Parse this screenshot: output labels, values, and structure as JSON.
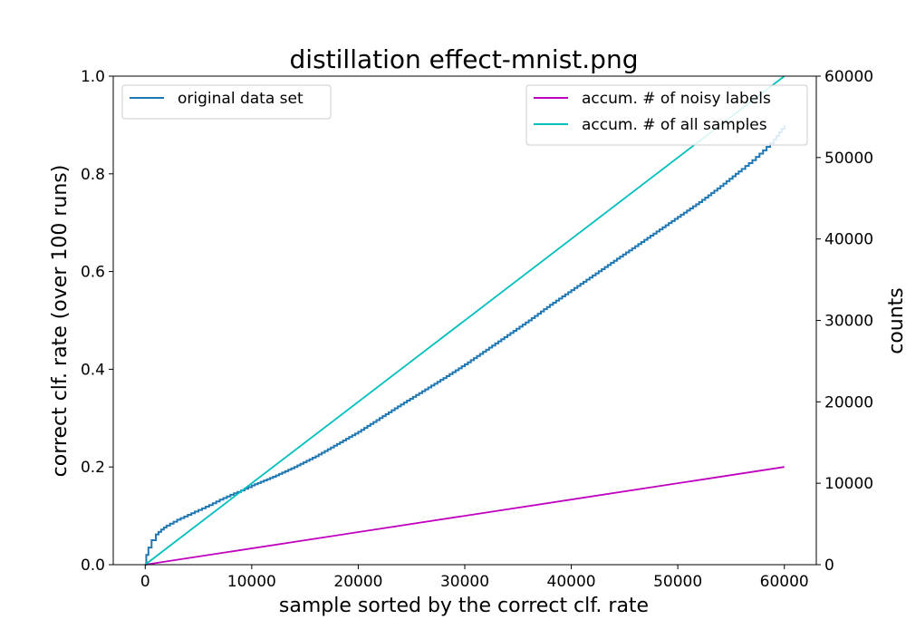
{
  "chart_data": {
    "type": "line",
    "title": "distillation effect-mnist.png",
    "xlabel": "sample sorted by the correct clf. rate",
    "ylabel_left": "correct clf. rate (over 100 runs)",
    "ylabel_right": "counts",
    "xlim": [
      -3000,
      63000
    ],
    "ylim_left": [
      0,
      1.0
    ],
    "ylim_right": [
      0,
      60000
    ],
    "xticks": [
      0,
      10000,
      20000,
      30000,
      40000,
      50000,
      60000
    ],
    "yticks_left": [
      0.0,
      0.2,
      0.4,
      0.6,
      0.8,
      1.0
    ],
    "yticks_left_labels": [
      "0.0",
      "0.2",
      "0.4",
      "0.6",
      "0.8",
      "1.0"
    ],
    "yticks_right": [
      0,
      10000,
      20000,
      30000,
      40000,
      50000,
      60000
    ],
    "grid": false,
    "legend_left": {
      "placement": "upper-left",
      "entries": [
        "original data set"
      ]
    },
    "legend_right": {
      "placement": "upper-right",
      "entries": [
        "accum. # of noisy labels",
        "accum. # of all samples"
      ]
    },
    "series": [
      {
        "name": "original data set",
        "axis": "left",
        "color": "#1f77b4",
        "style": "step",
        "x": [
          0,
          100,
          300,
          600,
          1000,
          1500,
          2000,
          3000,
          4000,
          5000,
          6000,
          7000,
          8000,
          9000,
          10000,
          12000,
          14000,
          16000,
          18000,
          20000,
          22000,
          24000,
          26000,
          28000,
          30000,
          32000,
          34000,
          36000,
          38000,
          40000,
          42000,
          44000,
          46000,
          48000,
          50000,
          52000,
          54000,
          56000,
          57000,
          58000,
          59000,
          59500,
          60000
        ],
        "y": [
          0.0,
          0.02,
          0.035,
          0.05,
          0.062,
          0.072,
          0.08,
          0.092,
          0.102,
          0.112,
          0.122,
          0.133,
          0.143,
          0.152,
          0.162,
          0.18,
          0.2,
          0.222,
          0.247,
          0.272,
          0.3,
          0.328,
          0.355,
          0.382,
          0.41,
          0.44,
          0.47,
          0.5,
          0.532,
          0.562,
          0.592,
          0.622,
          0.652,
          0.682,
          0.712,
          0.742,
          0.775,
          0.81,
          0.828,
          0.848,
          0.87,
          0.885,
          0.9
        ]
      },
      {
        "name": "accum. # of noisy labels",
        "axis": "right",
        "color": "#bf00bf",
        "x": [
          0,
          60000
        ],
        "y": [
          0,
          12000
        ]
      },
      {
        "name": "accum. # of all samples",
        "axis": "right",
        "color": "#00bfbf",
        "x": [
          0,
          60000
        ],
        "y": [
          0,
          60000
        ]
      }
    ]
  }
}
